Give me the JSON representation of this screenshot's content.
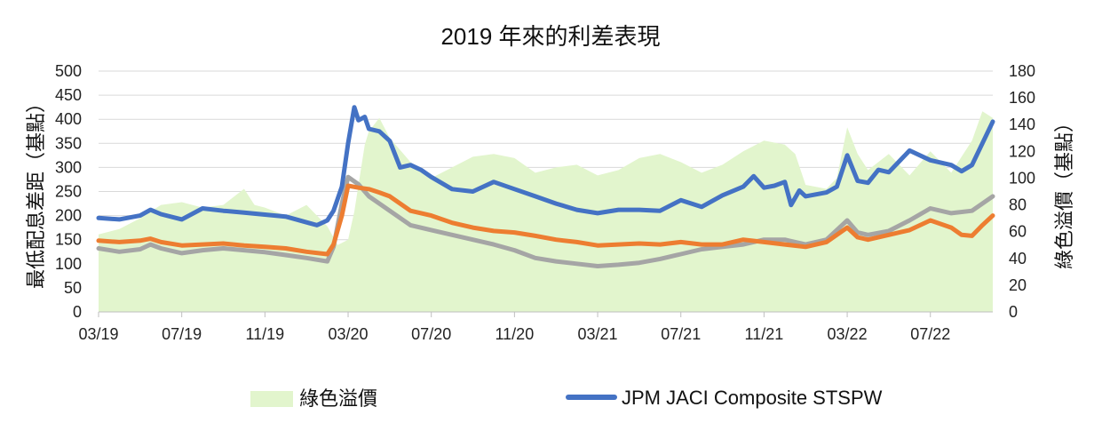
{
  "chart_data": {
    "type": "line",
    "title": "2019 年來的利差表現",
    "ylabel": "最低配息差距（基點）",
    "y2label": "綠色溢價（基點）",
    "ylim": [
      0,
      500
    ],
    "y2lim": [
      0,
      180
    ],
    "yticks": [
      0,
      50,
      100,
      150,
      200,
      250,
      300,
      350,
      400,
      450,
      500
    ],
    "y2ticks": [
      0,
      20,
      40,
      60,
      80,
      100,
      120,
      140,
      160,
      180
    ],
    "x_tick_labels": [
      "03/19",
      "07/19",
      "11/19",
      "03/20",
      "07/20",
      "11/20",
      "03/21",
      "07/21",
      "11/21",
      "03/22",
      "07/22"
    ],
    "x_tick_months": [
      0,
      4,
      8,
      12,
      16,
      20,
      24,
      28,
      32,
      36,
      40
    ],
    "xlim_months": [
      0,
      43
    ],
    "grid": "horizontal",
    "legend_position": "bottom",
    "colors": {
      "green_area": "#e2f5cd",
      "jaci": "#4472c4",
      "orange": "#ed7d31",
      "gray": "#a5a5a5"
    },
    "series": [
      {
        "name": "綠色溢價",
        "axis": "right",
        "kind": "area",
        "x": [
          0,
          1,
          2,
          3,
          4,
          5,
          6,
          7,
          7.5,
          8,
          9,
          10,
          11,
          11.5,
          12,
          12.3,
          12.8,
          13,
          13.5,
          14,
          15,
          16,
          17,
          18,
          19,
          20,
          21,
          22,
          23,
          24,
          25,
          26,
          27,
          28,
          29,
          30,
          31,
          32,
          33,
          33.5,
          34,
          35,
          35.5,
          36,
          36.5,
          37,
          38,
          39,
          40,
          41,
          42,
          42.5,
          43
        ],
        "values": [
          58,
          62,
          70,
          80,
          82,
          78,
          80,
          92,
          80,
          78,
          72,
          80,
          64,
          50,
          54,
          75,
          125,
          135,
          145,
          130,
          112,
          100,
          108,
          116,
          118,
          115,
          104,
          108,
          110,
          102,
          106,
          115,
          118,
          112,
          104,
          110,
          120,
          128,
          125,
          118,
          95,
          92,
          100,
          138,
          118,
          106,
          118,
          102,
          120,
          104,
          128,
          150,
          145
        ]
      },
      {
        "name": "JPM JACI Composite STSPW",
        "axis": "left",
        "kind": "line",
        "x": [
          0,
          1,
          2,
          2.5,
          3,
          4,
          5,
          6,
          7,
          8,
          9,
          10,
          10.5,
          11,
          11.3,
          11.7,
          12,
          12.3,
          12.5,
          12.8,
          13,
          13.5,
          14,
          14.5,
          15,
          15.5,
          16,
          17,
          18,
          19,
          20,
          21,
          22,
          23,
          24,
          25,
          26,
          27,
          28,
          29,
          30,
          31,
          31.5,
          32,
          32.5,
          33,
          33.3,
          33.7,
          34,
          35,
          35.5,
          36,
          36.5,
          37,
          37.5,
          38,
          39,
          40,
          41,
          41.5,
          42,
          42.5,
          43
        ],
        "values": [
          195,
          192,
          200,
          212,
          203,
          192,
          215,
          210,
          206,
          202,
          198,
          186,
          180,
          190,
          210,
          260,
          350,
          425,
          398,
          405,
          380,
          375,
          355,
          300,
          305,
          295,
          280,
          255,
          250,
          270,
          255,
          240,
          225,
          212,
          205,
          212,
          212,
          210,
          232,
          218,
          242,
          260,
          282,
          258,
          262,
          270,
          222,
          252,
          240,
          248,
          260,
          325,
          272,
          268,
          295,
          290,
          335,
          315,
          305,
          292,
          305,
          350,
          395
        ]
      },
      {
        "name": "",
        "axis": "left",
        "kind": "line",
        "x": [
          0,
          1,
          2,
          2.5,
          3,
          4,
          5,
          6,
          7,
          8,
          9,
          10,
          11,
          11.3,
          11.7,
          12,
          12.5,
          13,
          13.5,
          14,
          15,
          16,
          17,
          18,
          19,
          20,
          21,
          22,
          23,
          24,
          25,
          26,
          27,
          28,
          29,
          30,
          31,
          32,
          33,
          34,
          35,
          36,
          36.5,
          37,
          38,
          39,
          40,
          41,
          41.5,
          42,
          42.5,
          43
        ],
        "values": [
          148,
          145,
          148,
          152,
          145,
          138,
          140,
          142,
          138,
          135,
          132,
          125,
          120,
          140,
          200,
          262,
          258,
          255,
          248,
          240,
          210,
          200,
          185,
          175,
          168,
          165,
          158,
          150,
          145,
          138,
          140,
          142,
          140,
          145,
          140,
          140,
          150,
          145,
          140,
          135,
          145,
          175,
          155,
          150,
          160,
          170,
          190,
          175,
          160,
          158,
          180,
          200
        ]
      },
      {
        "name": "",
        "axis": "left",
        "kind": "line",
        "x": [
          0,
          1,
          2,
          2.5,
          3,
          4,
          5,
          6,
          7,
          8,
          9,
          10,
          11,
          11.3,
          11.7,
          12,
          12.5,
          13,
          13.5,
          14,
          15,
          16,
          17,
          18,
          19,
          20,
          21,
          22,
          23,
          24,
          25,
          26,
          27,
          28,
          29,
          30,
          31,
          32,
          33,
          34,
          35,
          36,
          36.5,
          37,
          38,
          39,
          40,
          41,
          42,
          43
        ],
        "values": [
          132,
          125,
          130,
          140,
          132,
          122,
          128,
          132,
          128,
          124,
          118,
          112,
          105,
          135,
          225,
          280,
          265,
          240,
          225,
          210,
          180,
          170,
          160,
          150,
          140,
          128,
          112,
          105,
          100,
          95,
          98,
          102,
          110,
          120,
          130,
          135,
          140,
          150,
          150,
          140,
          150,
          190,
          165,
          160,
          168,
          190,
          215,
          205,
          210,
          240
        ]
      }
    ]
  }
}
